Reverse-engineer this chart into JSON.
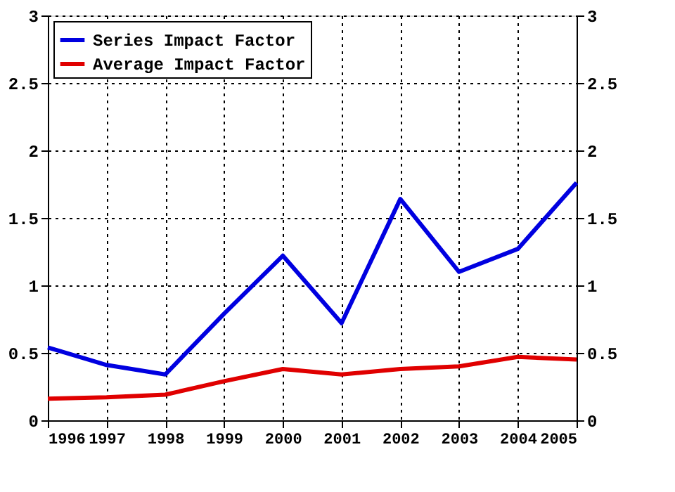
{
  "chart_data": {
    "type": "line",
    "x": [
      1996,
      1997,
      1998,
      1999,
      2000,
      2001,
      2002,
      2003,
      2004,
      2005
    ],
    "series": [
      {
        "name": "Series Impact Factor",
        "color": "#0000e0",
        "values": [
          0.54,
          0.41,
          0.34,
          0.79,
          1.22,
          0.72,
          1.64,
          1.1,
          1.27,
          1.76
        ]
      },
      {
        "name": "Average Impact Factor",
        "color": "#e00000",
        "values": [
          0.16,
          0.17,
          0.19,
          0.29,
          0.38,
          0.34,
          0.38,
          0.4,
          0.47,
          0.45
        ]
      }
    ],
    "xlim": [
      1996,
      2005
    ],
    "xticks": [
      1996,
      1997,
      1998,
      1999,
      2000,
      2001,
      2002,
      2003,
      2004,
      2005
    ],
    "ylim": [
      0,
      3
    ],
    "yticks": [
      0,
      0.5,
      1,
      1.5,
      2,
      2.5,
      3
    ],
    "y2lim": [
      0,
      3
    ],
    "y2ticks": [
      0,
      0.5,
      1,
      1.5,
      2,
      2.5,
      3
    ],
    "grid": true,
    "legend": "top left",
    "marker": "none",
    "line_style": "solid"
  }
}
